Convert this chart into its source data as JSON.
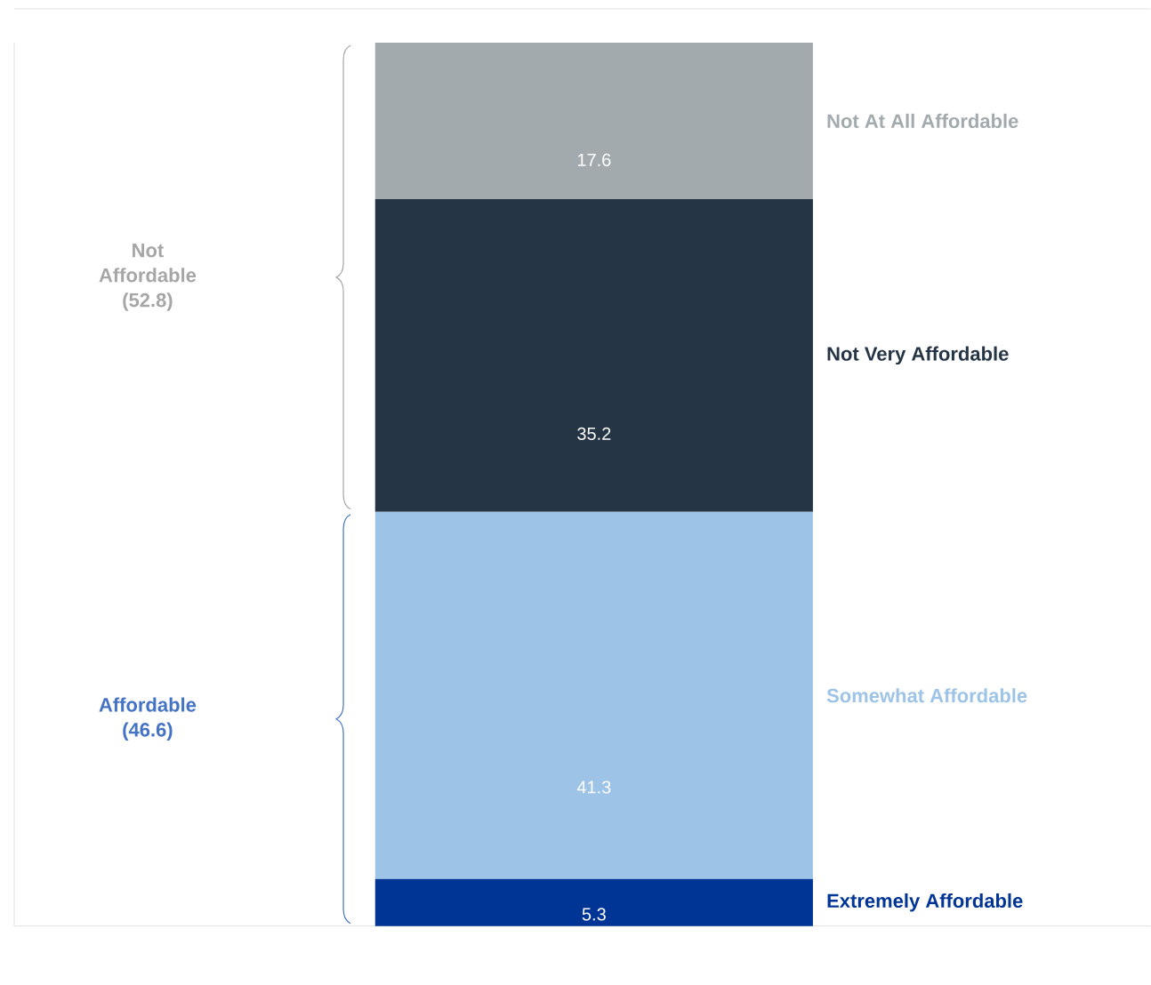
{
  "chart_data": {
    "type": "bar",
    "stacked": true,
    "categories": [
      null
    ],
    "series": [
      {
        "name": "Extremely Affordable",
        "color": "#003595",
        "values": [
          5.3
        ]
      },
      {
        "name": "Somewhat Affordable",
        "color": "#9dc3e6",
        "values": [
          41.3
        ]
      },
      {
        "name": "Not Very Affordable",
        "color": "#263545",
        "values": [
          35.2
        ]
      },
      {
        "name": "Not At All Affordable",
        "color": "#a2aaad",
        "values": [
          17.6
        ]
      }
    ],
    "data_labels": true,
    "annotations": [
      "Not Affordable (52.8)",
      "Affordable (46.6)"
    ]
  }
}
